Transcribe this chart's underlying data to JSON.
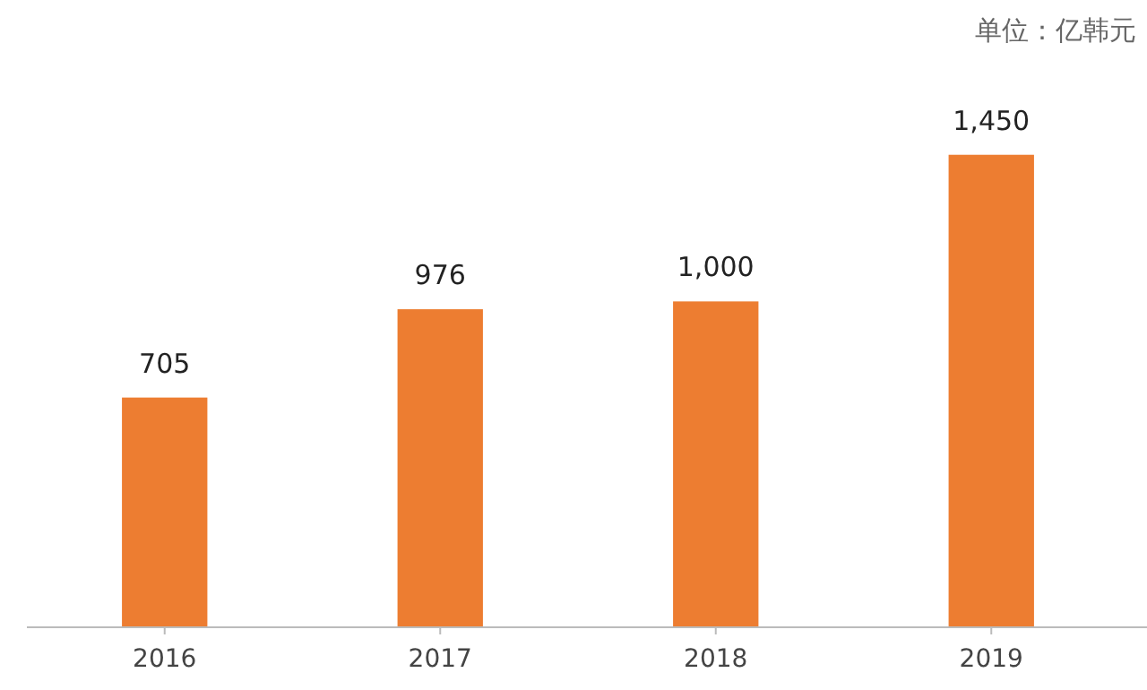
{
  "chart_data": {
    "type": "bar",
    "annotations": [
      "单位：亿韩元"
    ],
    "categories": [
      "2016",
      "2017",
      "2018",
      "2019"
    ],
    "values": [
      705,
      976,
      1000,
      1450
    ],
    "value_labels": [
      "705",
      "976",
      "1,000",
      "1,450"
    ],
    "color": "#ed7d31",
    "grid": false
  }
}
